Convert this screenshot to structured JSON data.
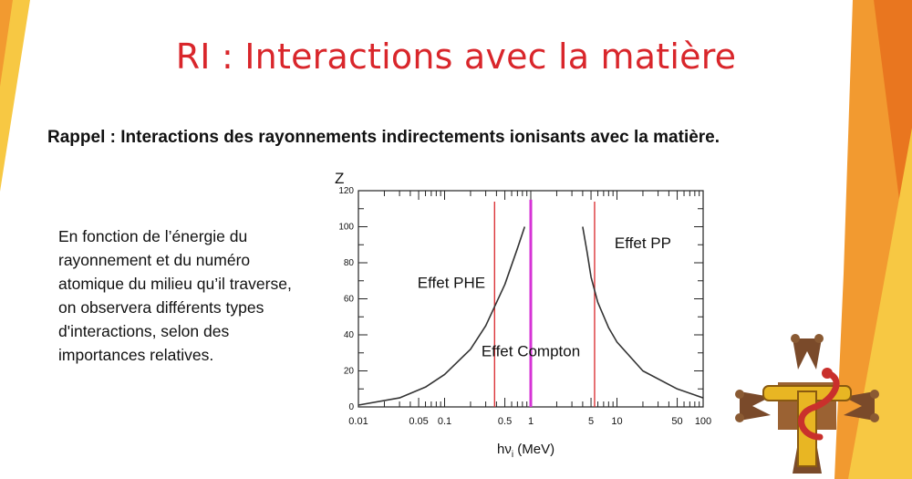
{
  "slide": {
    "title": "RI : Interactions avec la matière",
    "subtitle": "Rappel : Interactions des rayonnements indirectements ionisants avec la matière.",
    "body": "En fonction de l’énergie du rayonnement et du numéro atomique du milieu qu’il traverse, on observera différents types d'interactions, selon des importances relatives."
  },
  "chart_data": {
    "type": "line",
    "ylabel": "Z",
    "xlabel": "hνi (MeV)",
    "xscale": "log",
    "xlim": [
      0.01,
      100
    ],
    "ylim": [
      0,
      120
    ],
    "x_tick_labels": [
      "0.01",
      "0.05",
      "0.1",
      "0.5",
      "1",
      "5",
      "10",
      "50",
      "100"
    ],
    "x_tick_values": [
      0.01,
      0.05,
      0.1,
      0.5,
      1,
      5,
      10,
      50,
      100
    ],
    "y_ticks": [
      0,
      20,
      40,
      60,
      80,
      100,
      120
    ],
    "series": [
      {
        "color": "#333333",
        "x": [
          0.01,
          0.03,
          0.06,
          0.1,
          0.2,
          0.3,
          0.5,
          0.7,
          0.85
        ],
        "y": [
          1,
          5,
          11,
          18,
          32,
          45,
          68,
          88,
          100
        ]
      },
      {
        "color": "#333333",
        "x": [
          4,
          4.5,
          5,
          6,
          8,
          10,
          20,
          50,
          100
        ],
        "y": [
          100,
          86,
          72,
          58,
          44,
          36,
          20,
          10,
          5
        ]
      }
    ],
    "vertical_lines": [
      {
        "x": 0.38,
        "color": "#d9262b"
      },
      {
        "x": 1,
        "color": "#d633d6"
      },
      {
        "x": 5.5,
        "color": "#d9262b"
      }
    ],
    "regions": [
      {
        "label": "Effet PHE",
        "x": 0.12,
        "y": 66
      },
      {
        "label": "Effet Compton",
        "x": 1,
        "y": 28
      },
      {
        "label": "Effet PP",
        "x": 20,
        "y": 88
      }
    ]
  }
}
